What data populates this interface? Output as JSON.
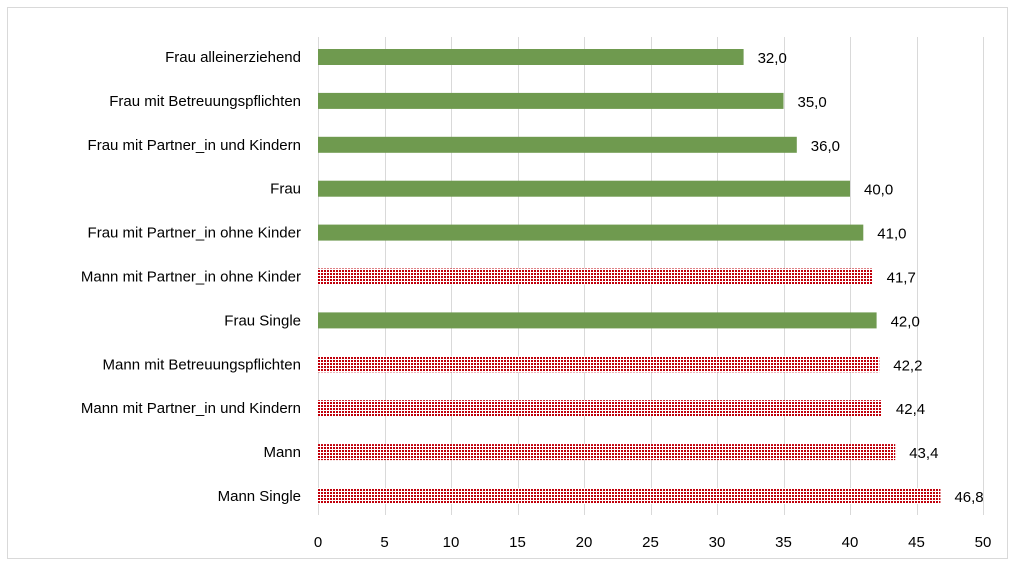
{
  "chart_data": {
    "type": "bar",
    "orientation": "horizontal",
    "categories": [
      "Frau alleinerziehend",
      "Frau mit Betreuungspflichten",
      "Frau mit Partner_in und Kindern",
      "Frau",
      "Frau mit Partner_in ohne Kinder",
      "Mann mit Partner_in ohne Kinder",
      "Frau Single",
      "Mann mit Betreuungspflichten",
      "Mann mit Partner_in und Kindern",
      "Mann",
      "Mann Single"
    ],
    "values": [
      32.0,
      35.0,
      36.0,
      40.0,
      41.0,
      41.7,
      42.0,
      42.2,
      42.4,
      43.4,
      46.8
    ],
    "value_labels": [
      "32,0",
      "35,0",
      "36,0",
      "40,0",
      "41,0",
      "41,7",
      "42,0",
      "42,2",
      "42,4",
      "43,4",
      "46,8"
    ],
    "group": [
      "frau",
      "frau",
      "frau",
      "frau",
      "frau",
      "mann",
      "frau",
      "mann",
      "mann",
      "mann",
      "mann"
    ],
    "xlim": [
      0,
      50
    ],
    "xticks": [
      "0",
      "5",
      "10",
      "15",
      "20",
      "25",
      "30",
      "35",
      "40",
      "45",
      "50"
    ],
    "grid": "vertical",
    "legend": "none",
    "colors": {
      "frau": "#6f9a4f",
      "mann_dot": "#c0000b",
      "mann_bg": "#ffffff",
      "grid": "#d9d9d9"
    }
  }
}
